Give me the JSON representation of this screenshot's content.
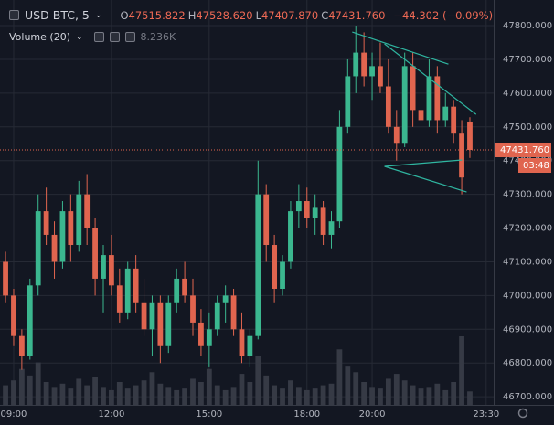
{
  "chart_data": {
    "type": "candlestick",
    "header": {
      "symbol": "USD-BTC, 5",
      "ohlc": [
        {
          "key": "O",
          "value": 47515.822,
          "label": "47515.822"
        },
        {
          "key": "H",
          "value": 47528.62,
          "label": "47528.620"
        },
        {
          "key": "L",
          "value": 47407.87,
          "label": "47407.870"
        },
        {
          "key": "C",
          "value": 47431.76,
          "label": "47431.760"
        }
      ],
      "change": {
        "value": -44.302,
        "label": "−44.302 (−0.09%)"
      }
    },
    "volume": {
      "name": "Volume (20)",
      "last": {
        "value": 8236,
        "label": "8.236K"
      },
      "values": [
        12000,
        15000,
        22000,
        18000,
        26000,
        14000,
        11000,
        13000,
        10000,
        16000,
        12000,
        17000,
        11000,
        9000,
        14000,
        10000,
        12000,
        15000,
        20000,
        13000,
        11000,
        9000,
        10000,
        16000,
        14000,
        22000,
        12000,
        9000,
        11000,
        19000,
        14000,
        30000,
        18000,
        12000,
        10000,
        15000,
        11000,
        9000,
        10000,
        12000,
        13000,
        34000,
        24000,
        20000,
        14000,
        11000,
        10000,
        16000,
        19000,
        15000,
        12000,
        10000,
        11000,
        13000,
        9000,
        14000,
        42000,
        8236
      ]
    },
    "x": [
      8.75,
      9,
      9.25,
      9.5,
      9.75,
      10,
      10.25,
      10.5,
      10.75,
      11,
      11.25,
      11.5,
      11.75,
      12,
      12.25,
      12.5,
      12.75,
      13,
      13.25,
      13.5,
      13.75,
      14,
      14.25,
      14.5,
      14.75,
      15,
      15.25,
      15.5,
      15.75,
      16,
      16.25,
      16.5,
      16.75,
      17,
      17.25,
      17.5,
      17.75,
      18,
      18.25,
      18.5,
      18.75,
      19,
      19.25,
      19.5,
      19.75,
      20,
      20.25,
      20.5,
      20.75,
      21,
      21.25,
      21.5,
      21.75,
      22,
      22.25,
      22.5,
      22.75,
      23
    ],
    "open": [
      47100,
      47000,
      46880,
      46820,
      47030,
      47250,
      47180,
      47100,
      47250,
      47150,
      47300,
      47200,
      47050,
      47120,
      47030,
      46950,
      47080,
      46980,
      46900,
      46980,
      46850,
      46980,
      47050,
      47000,
      46920,
      46850,
      46900,
      46980,
      47000,
      46900,
      46820,
      46880,
      47300,
      47150,
      47020,
      47100,
      47250,
      47280,
      47230,
      47260,
      47180,
      47220,
      47500,
      47650,
      47720,
      47650,
      47680,
      47620,
      47500,
      47450,
      47680,
      47550,
      47520,
      47650,
      47520,
      47560,
      47480,
      47515.822
    ],
    "high": [
      47130,
      47020,
      46900,
      47050,
      47300,
      47320,
      47220,
      47280,
      47300,
      47340,
      47360,
      47230,
      47150,
      47180,
      47080,
      47100,
      47120,
      47050,
      47000,
      47000,
      47000,
      47080,
      47100,
      47050,
      46960,
      46950,
      47000,
      47030,
      47020,
      46950,
      46900,
      47400,
      47330,
      47180,
      47120,
      47280,
      47330,
      47320,
      47300,
      47280,
      47250,
      47550,
      47700,
      47800,
      47780,
      47720,
      47750,
      47700,
      47550,
      47720,
      47720,
      47600,
      47700,
      47680,
      47600,
      47580,
      47520,
      47528.62
    ],
    "low": [
      46980,
      46850,
      46780,
      46810,
      47000,
      47150,
      47050,
      47080,
      47100,
      47130,
      47150,
      47000,
      46950,
      47000,
      46920,
      46930,
      46950,
      46880,
      46820,
      46800,
      46830,
      46950,
      46980,
      46880,
      46820,
      46790,
      46880,
      46920,
      46880,
      46800,
      46790,
      46870,
      47100,
      46980,
      47000,
      47080,
      47200,
      47200,
      47180,
      47150,
      47140,
      47200,
      47480,
      47600,
      47620,
      47580,
      47600,
      47480,
      47400,
      47440,
      47500,
      47450,
      47500,
      47480,
      47500,
      47450,
      47300,
      47407.87
    ],
    "close": [
      47000,
      46880,
      46820,
      47030,
      47250,
      47180,
      47100,
      47250,
      47150,
      47300,
      47200,
      47050,
      47120,
      47030,
      46950,
      47080,
      46980,
      46900,
      46980,
      46850,
      46980,
      47050,
      47000,
      46920,
      46850,
      46900,
      46980,
      47000,
      46900,
      46820,
      46880,
      47300,
      47150,
      47020,
      47100,
      47250,
      47280,
      47230,
      47260,
      47180,
      47220,
      47500,
      47650,
      47720,
      47650,
      47680,
      47620,
      47500,
      47450,
      47680,
      47550,
      47520,
      47650,
      47520,
      47560,
      47480,
      47350,
      47431.76
    ],
    "up_color": "#3bb78f",
    "down_color": "#e0654f",
    "last_price": {
      "value": 47431.76,
      "label": "47431.760"
    },
    "countdown": "03:48",
    "trendlines": [
      {
        "x": [
          19.39,
          22.34
        ],
        "y": [
          47781,
          47686
        ]
      },
      {
        "x": [
          20.38,
          23.19
        ],
        "y": [
          47746,
          47537
        ]
      },
      {
        "x": [
          20.38,
          22.9
        ],
        "y": [
          47383,
          47307
        ]
      },
      {
        "x": [
          20.38,
          22.76
        ],
        "y": [
          47383,
          47402
        ]
      }
    ],
    "trendline_color": "#2fb5a0",
    "xlim": [
      8.58,
      23.73
    ],
    "ylim": [
      46676,
      47876
    ],
    "xticks": [
      {
        "value": 9,
        "label": "09:00"
      },
      {
        "value": 12,
        "label": "12:00"
      },
      {
        "value": 15,
        "label": "15:00"
      },
      {
        "value": 18,
        "label": "18:00"
      },
      {
        "value": 20,
        "label": "20:00"
      },
      {
        "value": 23.5,
        "label": "23:30"
      }
    ],
    "yticks": [
      {
        "value": 46700,
        "label": "46700.000"
      },
      {
        "value": 46800,
        "label": "46800.000"
      },
      {
        "value": 46900,
        "label": "46900.000"
      },
      {
        "value": 47000,
        "label": "47000.000"
      },
      {
        "value": 47100,
        "label": "47100.000"
      },
      {
        "value": 47200,
        "label": "47200.000"
      },
      {
        "value": 47300,
        "label": "47300.000"
      },
      {
        "value": 47400,
        "label": "47400.000"
      },
      {
        "value": 47500,
        "label": "47500.000"
      },
      {
        "value": 47600,
        "label": "47600.000"
      },
      {
        "value": 47700,
        "label": "47700.000"
      },
      {
        "value": 47800,
        "label": "47800.000"
      }
    ],
    "grid": true
  }
}
